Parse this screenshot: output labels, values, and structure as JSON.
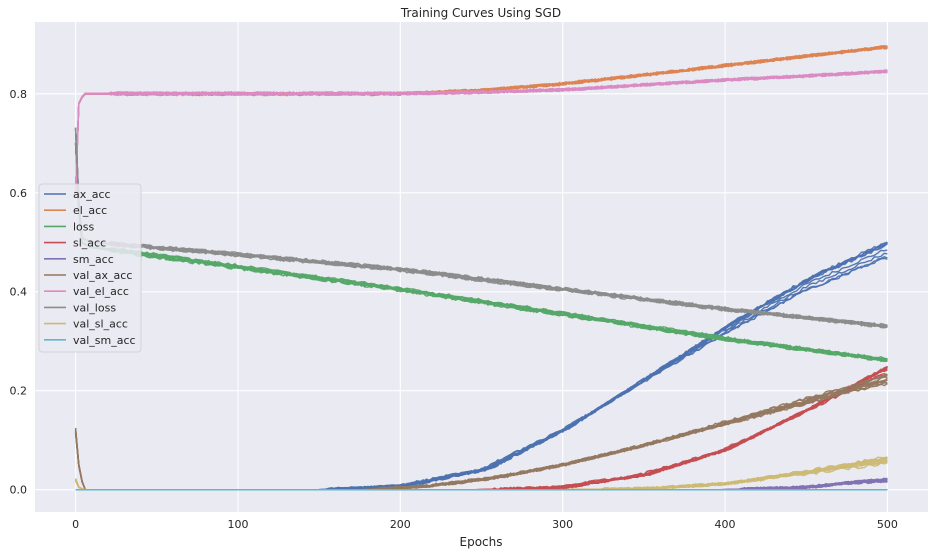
{
  "chart_data": {
    "type": "line",
    "title": "Training Curves Using SGD",
    "xlabel": "Epochs",
    "ylabel": "",
    "xlim": [
      -25,
      525
    ],
    "ylim": [
      -0.045,
      0.945
    ],
    "xticks": [
      0,
      100,
      200,
      300,
      400,
      500
    ],
    "yticks": [
      0.0,
      0.2,
      0.4,
      0.6,
      0.8
    ],
    "ytick_labels": [
      "0.0",
      "0.2",
      "0.4",
      "0.6",
      "0.8"
    ],
    "grid": true,
    "background": "#EAEAF2",
    "legend_position": "center-left",
    "runs_per_series": 10,
    "series": [
      {
        "name": "ax_acc",
        "color": "#4C72B0",
        "x": [
          0,
          3,
          150,
          200,
          250,
          300,
          350,
          400,
          450,
          500
        ],
        "values": [
          0.0,
          0.0,
          0.0,
          0.008,
          0.04,
          0.12,
          0.22,
          0.32,
          0.41,
          0.48
        ]
      },
      {
        "name": "el_acc",
        "color": "#DD8452",
        "x": [
          0,
          2,
          5,
          100,
          200,
          250,
          300,
          350,
          400,
          450,
          500
        ],
        "values": [
          0.6,
          0.78,
          0.8,
          0.8,
          0.8,
          0.807,
          0.82,
          0.838,
          0.857,
          0.876,
          0.895
        ]
      },
      {
        "name": "loss",
        "color": "#55A868",
        "x": [
          0,
          3,
          10,
          100,
          200,
          300,
          400,
          500
        ],
        "values": [
          0.7,
          0.5,
          0.49,
          0.45,
          0.405,
          0.355,
          0.305,
          0.262
        ]
      },
      {
        "name": "sl_acc",
        "color": "#C44E52",
        "x": [
          0,
          250,
          300,
          350,
          400,
          450,
          500
        ],
        "values": [
          0.0,
          0.0,
          0.005,
          0.03,
          0.08,
          0.16,
          0.245
        ]
      },
      {
        "name": "sm_acc",
        "color": "#8172B3",
        "x": [
          0,
          400,
          450,
          480,
          500
        ],
        "values": [
          0.0,
          0.0,
          0.005,
          0.015,
          0.02
        ]
      },
      {
        "name": "val_ax_acc",
        "color": "#937860",
        "x": [
          0,
          2,
          5,
          180,
          220,
          260,
          300,
          350,
          400,
          450,
          500
        ],
        "values": [
          0.12,
          0.05,
          0.0,
          0.0,
          0.008,
          0.025,
          0.05,
          0.09,
          0.135,
          0.18,
          0.225
        ]
      },
      {
        "name": "val_el_acc",
        "color": "#DA8BC3",
        "x": [
          0,
          2,
          5,
          100,
          200,
          250,
          300,
          350,
          400,
          450,
          500
        ],
        "values": [
          0.6,
          0.78,
          0.8,
          0.8,
          0.8,
          0.803,
          0.808,
          0.818,
          0.828,
          0.836,
          0.845
        ]
      },
      {
        "name": "val_loss",
        "color": "#8C8C8C",
        "x": [
          0,
          3,
          10,
          100,
          200,
          300,
          400,
          500
        ],
        "values": [
          0.73,
          0.51,
          0.5,
          0.475,
          0.445,
          0.405,
          0.365,
          0.33
        ]
      },
      {
        "name": "val_sl_acc",
        "color": "#CCB974",
        "x": [
          0,
          2,
          5,
          300,
          350,
          400,
          450,
          500
        ],
        "values": [
          0.02,
          0.005,
          0.0,
          0.0,
          0.002,
          0.012,
          0.035,
          0.06
        ]
      },
      {
        "name": "val_sm_acc",
        "color": "#64B5CD",
        "x": [
          0,
          500
        ],
        "values": [
          0.0,
          0.0
        ]
      }
    ]
  }
}
